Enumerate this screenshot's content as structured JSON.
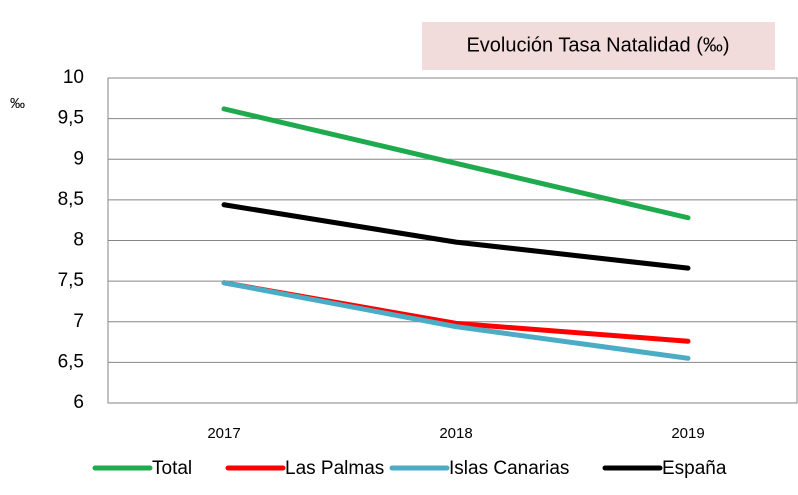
{
  "chart_data": {
    "type": "line",
    "title": "Evolución Tasa Natalidad (‰)",
    "y_label": "‰",
    "categories": [
      "2017",
      "2018",
      "2019"
    ],
    "series": [
      {
        "name": "Total",
        "color": "#1faa4e",
        "values": [
          9.62,
          8.95,
          8.28
        ]
      },
      {
        "name": "Las Palmas",
        "color": "#ff0000",
        "values": [
          7.48,
          6.98,
          6.76
        ]
      },
      {
        "name": "Islas Canarias",
        "color": "#4bacc6",
        "values": [
          7.48,
          6.94,
          6.55
        ]
      },
      {
        "name": "España",
        "color": "#000000",
        "values": [
          8.44,
          7.98,
          7.66
        ]
      }
    ],
    "ylim": [
      6,
      10
    ],
    "yticks": [
      6,
      {
        "value": 6.5,
        "label": "6,5"
      },
      7,
      {
        "value": 7.5,
        "label": "7,5"
      },
      8,
      {
        "value": 8.5,
        "label": "8,5"
      },
      9,
      {
        "value": 9.5,
        "label": "9,5"
      },
      10
    ],
    "grid": true,
    "legend": "bottom"
  }
}
